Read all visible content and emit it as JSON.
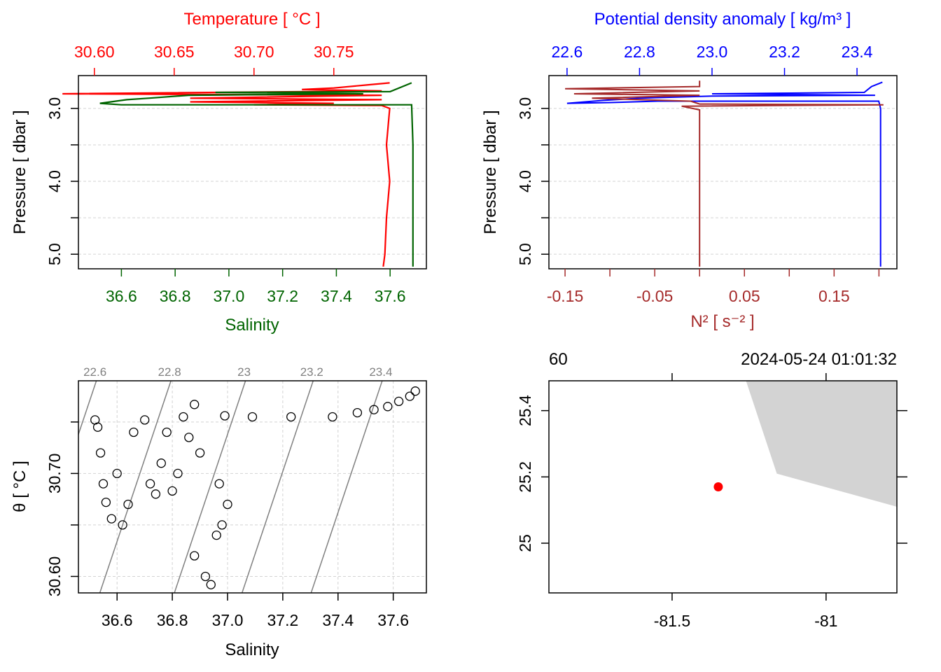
{
  "colors": {
    "temperature": "#ff0000",
    "salinity": "#006400",
    "density": "#0000ff",
    "n2": "#a52a2a",
    "grid": "#d3d3d3",
    "isopycnal": "#808080",
    "land": "#d3d3d3",
    "station": "#ff0000"
  },
  "chart_data": [
    {
      "type": "line",
      "panel": "temperature-salinity-profile",
      "top_axis_label": "Temperature [ °C ]",
      "top_ticks": [
        "30.60",
        "30.65",
        "30.70",
        "30.75"
      ],
      "top_lim": [
        30.59,
        30.808
      ],
      "bottom_axis_label": "Salinity",
      "bottom_ticks": [
        "36.6",
        "36.8",
        "37.0",
        "37.2",
        "37.4",
        "37.6"
      ],
      "bottom_lim": [
        36.44,
        37.735
      ],
      "ylabel": "Pressure [ dbar ]",
      "y_ticks": [
        "3.0",
        "4.0",
        "5.0"
      ],
      "ylim": [
        5.2,
        2.55
      ],
      "reversed_y": true,
      "grid": true,
      "series": [
        {
          "name": "Temperature",
          "color_key": "temperature",
          "points": [
            [
              30.785,
              2.65
            ],
            [
              30.77,
              2.68
            ],
            [
              30.75,
              2.72
            ],
            [
              30.73,
              2.74
            ],
            [
              30.78,
              2.76
            ],
            [
              30.58,
              2.8
            ],
            [
              30.78,
              2.82
            ],
            [
              30.66,
              2.86
            ],
            [
              30.78,
              2.88
            ],
            [
              30.66,
              2.91
            ],
            [
              30.75,
              2.93
            ],
            [
              30.7,
              2.95
            ],
            [
              30.78,
              2.96
            ],
            [
              30.785,
              3.0
            ],
            [
              30.783,
              3.5
            ],
            [
              30.785,
              4.0
            ],
            [
              30.783,
              4.5
            ],
            [
              30.782,
              5.0
            ],
            [
              30.781,
              5.17
            ]
          ]
        },
        {
          "name": "Salinity",
          "color_key": "salinity",
          "points": [
            [
              37.68,
              2.65
            ],
            [
              37.6,
              2.77
            ],
            [
              36.95,
              2.78
            ],
            [
              37.5,
              2.8
            ],
            [
              36.85,
              2.82
            ],
            [
              36.7,
              2.86
            ],
            [
              36.62,
              2.88
            ],
            [
              36.52,
              2.93
            ],
            [
              36.6,
              2.95
            ],
            [
              37.68,
              2.95
            ],
            [
              37.685,
              3.5
            ],
            [
              37.685,
              4.0
            ],
            [
              37.685,
              4.5
            ],
            [
              37.685,
              5.17
            ]
          ]
        }
      ]
    },
    {
      "type": "line",
      "panel": "density-n2-profile",
      "top_axis_label": "Potential density anomaly [ kg/m³ ]",
      "top_ticks": [
        "22.6",
        "22.8",
        "23.0",
        "23.2",
        "23.4"
      ],
      "top_lim": [
        22.55,
        23.51
      ],
      "bottom_axis_label": "N² [ s⁻² ]",
      "bottom_ticks": [
        "-0.15",
        "-0.05",
        "0.05",
        "0.15"
      ],
      "bottom_minor_ticks": [
        "-0.1",
        "0",
        "0.1",
        "0.2"
      ],
      "bottom_lim": [
        -0.168,
        0.22
      ],
      "ylabel": "Pressure [ dbar ]",
      "y_ticks": [
        "3.0",
        "4.0",
        "5.0"
      ],
      "ylim": [
        5.2,
        2.55
      ],
      "reversed_y": true,
      "grid": true,
      "series": [
        {
          "name": "Potential density anomaly",
          "color_key": "density",
          "points": [
            [
              23.47,
              2.64
            ],
            [
              23.44,
              2.7
            ],
            [
              23.42,
              2.78
            ],
            [
              23.0,
              2.8
            ],
            [
              23.45,
              2.82
            ],
            [
              23.0,
              2.83
            ],
            [
              22.8,
              2.86
            ],
            [
              22.7,
              2.89
            ],
            [
              22.6,
              2.93
            ],
            [
              22.72,
              2.92
            ],
            [
              22.85,
              2.9
            ],
            [
              23.46,
              2.9
            ],
            [
              23.465,
              3.0
            ],
            [
              23.465,
              4.0
            ],
            [
              23.465,
              5.17
            ]
          ]
        },
        {
          "name": "N²",
          "color_key": "n2",
          "points": [
            [
              0.0,
              2.62
            ],
            [
              0.0,
              2.7
            ],
            [
              -0.15,
              2.73
            ],
            [
              0.0,
              2.76
            ],
            [
              -0.14,
              2.8
            ],
            [
              0.0,
              2.82
            ],
            [
              -0.12,
              2.86
            ],
            [
              -0.01,
              2.9
            ],
            [
              0.0,
              2.94
            ],
            [
              0.205,
              2.95
            ],
            [
              -0.02,
              2.97
            ],
            [
              0.0,
              3.02
            ],
            [
              0.0,
              3.5
            ],
            [
              0.0,
              4.0
            ],
            [
              0.0,
              5.17
            ]
          ]
        }
      ]
    },
    {
      "type": "scatter",
      "panel": "ts-diagram",
      "xlabel": "Salinity",
      "x_ticks": [
        "36.6",
        "36.8",
        "37.0",
        "37.2",
        "37.4",
        "37.6"
      ],
      "xlim": [
        36.46,
        37.72
      ],
      "ylabel": "θ [ °C ]",
      "y_ticks": [
        "30.60",
        "30.70"
      ],
      "ylim": [
        30.584,
        30.79
      ],
      "grid": true,
      "isopycnal_labels": [
        "22.6",
        "22.8",
        "23",
        "23.2",
        "23.4"
      ],
      "points": [
        [
          36.52,
          30.752
        ],
        [
          36.53,
          30.745
        ],
        [
          36.54,
          30.72
        ],
        [
          36.55,
          30.69
        ],
        [
          36.56,
          30.672
        ],
        [
          36.58,
          30.656
        ],
        [
          36.62,
          30.65
        ],
        [
          36.6,
          30.7
        ],
        [
          36.64,
          30.67
        ],
        [
          36.66,
          30.74
        ],
        [
          36.7,
          30.752
        ],
        [
          36.72,
          30.69
        ],
        [
          36.74,
          30.68
        ],
        [
          36.76,
          30.71
        ],
        [
          36.78,
          30.74
        ],
        [
          36.8,
          30.683
        ],
        [
          36.82,
          30.7
        ],
        [
          36.84,
          30.755
        ],
        [
          36.86,
          30.735
        ],
        [
          36.88,
          30.767
        ],
        [
          36.9,
          30.72
        ],
        [
          36.88,
          30.62
        ],
        [
          36.92,
          30.6
        ],
        [
          36.94,
          30.592
        ],
        [
          36.96,
          30.64
        ],
        [
          36.98,
          30.65
        ],
        [
          37.0,
          30.67
        ],
        [
          36.97,
          30.69
        ],
        [
          36.99,
          30.756
        ],
        [
          37.09,
          30.755
        ],
        [
          37.23,
          30.755
        ],
        [
          37.38,
          30.755
        ],
        [
          37.47,
          30.759
        ],
        [
          37.53,
          30.762
        ],
        [
          37.58,
          30.765
        ],
        [
          37.62,
          30.77
        ],
        [
          37.66,
          30.775
        ],
        [
          37.68,
          30.78
        ]
      ]
    },
    {
      "type": "map",
      "panel": "station-map",
      "x_ticks": [
        "-81.5",
        "-81"
      ],
      "xlim": [
        -81.9,
        -80.77
      ],
      "y_ticks": [
        "25",
        "25.2",
        "25.4"
      ],
      "ylim": [
        24.85,
        25.49
      ],
      "top_left_label": "60",
      "top_right_label": "2024-05-24 01:01:32",
      "station": {
        "lon": -81.35,
        "lat": 25.17
      },
      "land_polygon": [
        [
          -81.26,
          25.49
        ],
        [
          -80.77,
          25.49
        ],
        [
          -80.77,
          25.11
        ],
        [
          -81.16,
          25.21
        ]
      ]
    }
  ]
}
